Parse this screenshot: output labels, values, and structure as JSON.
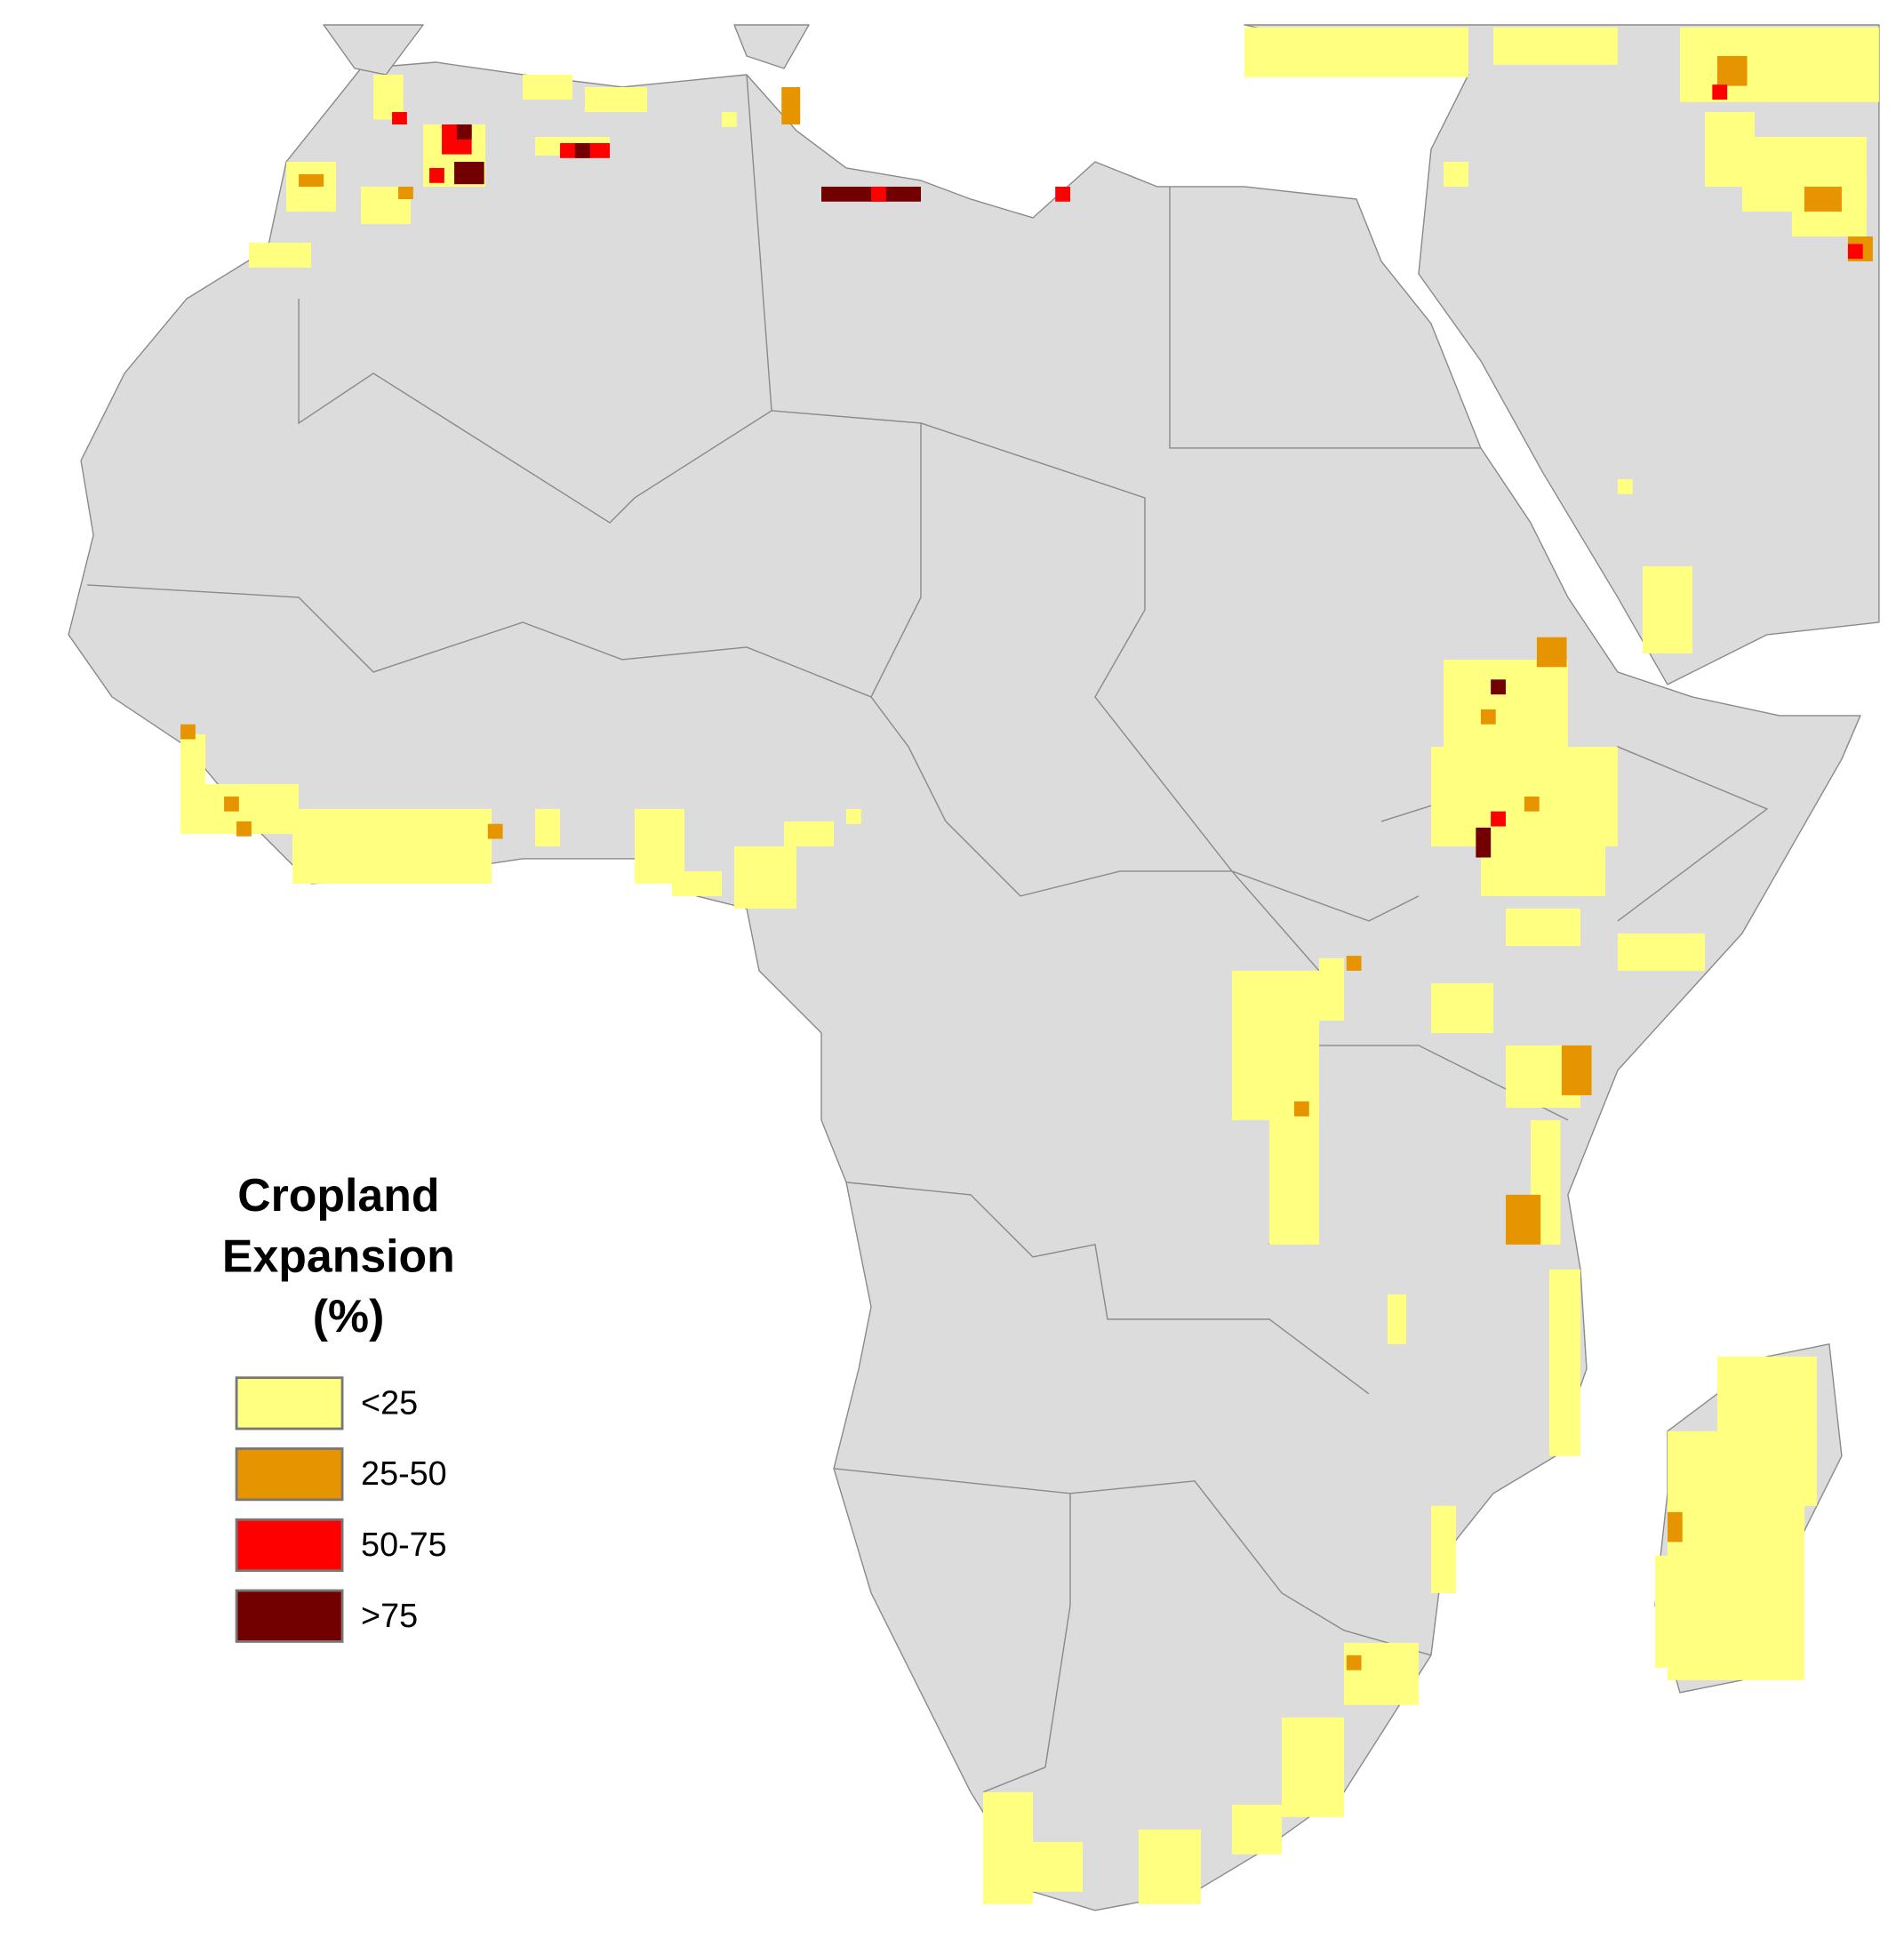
{
  "legend": {
    "title": [
      "Cropland",
      "Expansion",
      "(%)"
    ],
    "items": [
      {
        "label": "<25",
        "color": "#ffff80"
      },
      {
        "label": "25-50",
        "color": "#e69500"
      },
      {
        "label": "50-75",
        "color": "#ff0000"
      },
      {
        "label": ">75",
        "color": "#730000"
      }
    ]
  }
}
